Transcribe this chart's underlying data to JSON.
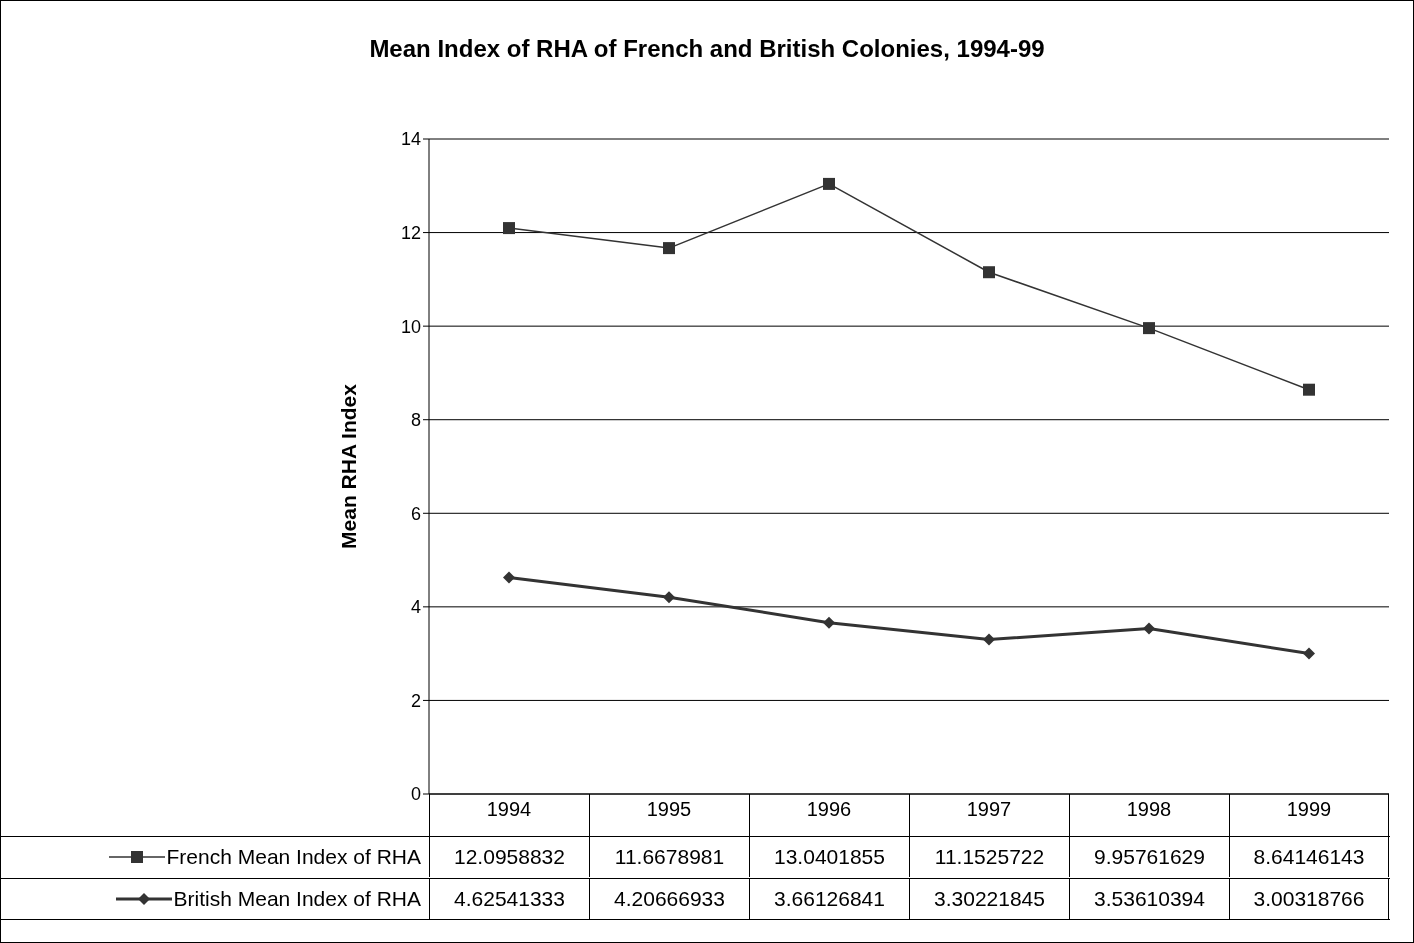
{
  "chart_data": {
    "type": "line",
    "title": "Mean Index of RHA of French and British Colonies, 1994-99",
    "ylabel": "Mean RHA Index",
    "categories": [
      "1994",
      "1995",
      "1996",
      "1997",
      "1998",
      "1999"
    ],
    "series": [
      {
        "name": "French Mean Index of RHA",
        "color": "#333333",
        "marker": "square",
        "values": [
          12.0958832,
          11.6678981,
          13.0401855,
          11.1525722,
          9.95761629,
          8.64146143
        ]
      },
      {
        "name": "British Mean Index of RHA",
        "color": "#333333",
        "marker": "diamond",
        "values": [
          4.62541333,
          4.20666933,
          3.66126841,
          3.30221845,
          3.53610394,
          3.00318766
        ]
      }
    ],
    "ylim": [
      0,
      14
    ],
    "yticks": [
      0,
      2,
      4,
      6,
      8,
      10,
      12,
      14
    ],
    "grid": "y",
    "legend": "bottom",
    "data_labels": true,
    "line_style": "solid"
  }
}
